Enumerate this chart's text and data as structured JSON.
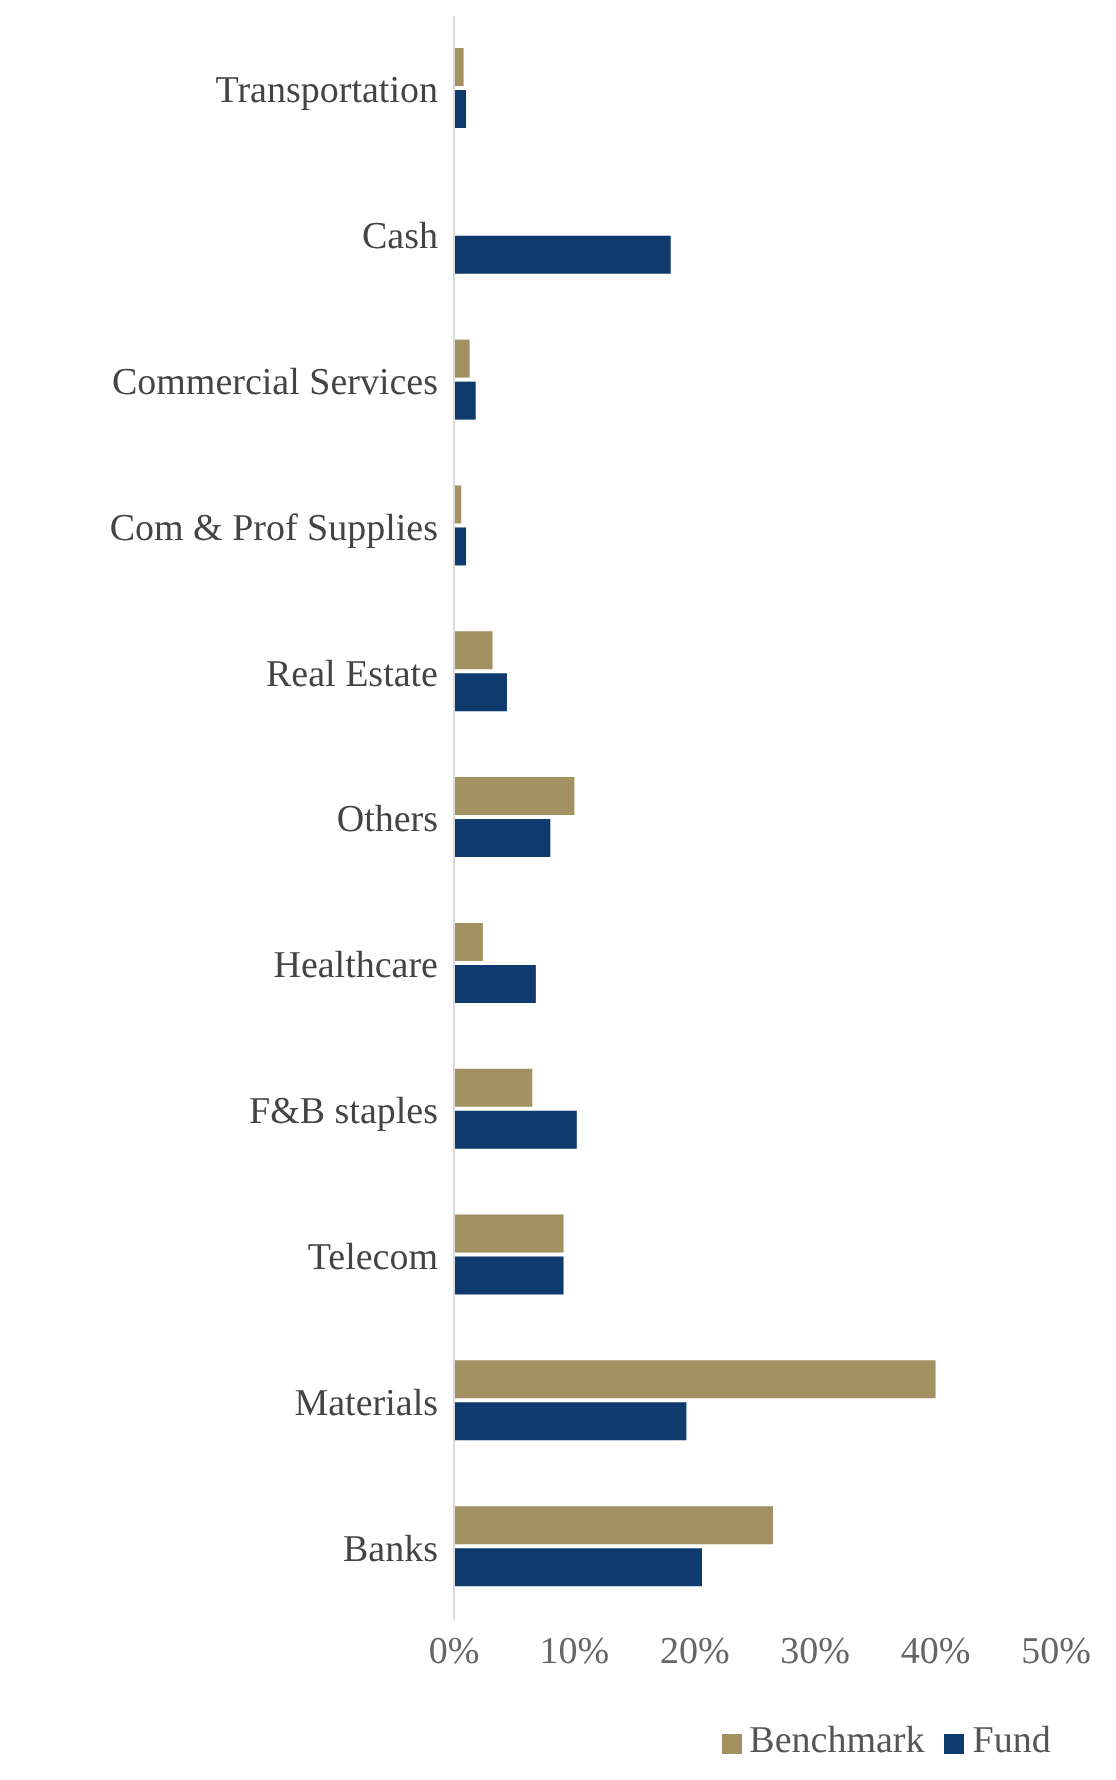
{
  "chart_data": {
    "type": "bar",
    "orientation": "horizontal",
    "categories": [
      "Transportation",
      "Cash",
      "Commercial Services",
      "Com & Prof Supplies",
      "Real Estate",
      "Others",
      "Healthcare",
      "F&B staples",
      "Telecom",
      "Materials",
      "Banks"
    ],
    "series": [
      {
        "name": "Benchmark",
        "color": "#a39161",
        "values": [
          0.8,
          0,
          1.3,
          0.6,
          3.2,
          10,
          2.4,
          6.5,
          9.1,
          40,
          26.5
        ]
      },
      {
        "name": "Fund",
        "color": "#0e3a6e",
        "values": [
          1,
          18,
          1.8,
          1,
          4.4,
          8,
          6.8,
          10.2,
          9.1,
          19.3,
          20.6
        ]
      }
    ],
    "xlim": [
      0,
      50
    ],
    "xticks": [
      {
        "value": 0,
        "label": "0%"
      },
      {
        "value": 10,
        "label": "10%"
      },
      {
        "value": 20,
        "label": "20%"
      },
      {
        "value": 30,
        "label": "30%"
      },
      {
        "value": 40,
        "label": "40%"
      },
      {
        "value": 50,
        "label": "50%"
      }
    ],
    "grid": false,
    "legend": "bottom"
  }
}
